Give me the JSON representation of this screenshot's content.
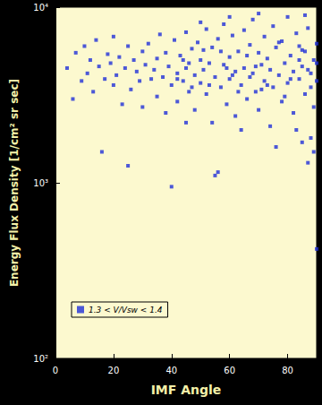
{
  "chart_data": {
    "type": "scatter",
    "x_label": "IMF Angle",
    "y_label": "Energy Flux Density [1/cm² sr sec]",
    "xlim": [
      0,
      90
    ],
    "xticks": [
      0,
      20,
      40,
      60,
      80
    ],
    "ylim": [
      100,
      10000
    ],
    "yticks": [
      {
        "value": 100,
        "label": "10²"
      },
      {
        "value": 1000,
        "label": "10³"
      },
      {
        "value": 10000,
        "label": "10⁴"
      }
    ],
    "log": "y",
    "grid": false,
    "legend": "lower left",
    "series": [
      {
        "name": "1.3 < V/Vsw < 1.4",
        "color": "#1f2fd8",
        "marker": "square",
        "x": [
          4,
          6,
          7,
          9,
          10,
          11,
          12,
          13,
          14,
          15,
          16,
          17,
          18,
          19,
          20,
          20,
          21,
          22,
          23,
          24,
          25,
          25,
          26,
          27,
          28,
          29,
          30,
          30,
          31,
          32,
          33,
          34,
          35,
          35,
          36,
          37,
          38,
          38,
          39,
          40,
          40,
          41,
          42,
          42,
          43,
          44,
          45,
          45,
          46,
          47,
          48,
          48,
          49,
          50,
          50,
          51,
          52,
          52,
          53,
          54,
          54,
          55,
          55,
          56,
          56,
          57,
          58,
          58,
          59,
          60,
          60,
          61,
          62,
          62,
          63,
          64,
          65,
          65,
          66,
          67,
          68,
          68,
          69,
          70,
          70,
          71,
          72,
          72,
          73,
          74,
          74,
          75,
          75,
          76,
          77,
          78,
          78,
          79,
          80,
          80,
          81,
          82,
          82,
          83,
          84,
          84,
          85,
          85,
          86,
          86,
          87,
          87,
          88,
          88,
          89,
          89,
          90,
          90,
          90,
          86,
          70,
          60,
          50,
          45,
          64,
          76,
          83,
          89,
          44,
          46,
          53,
          57,
          61,
          66,
          69,
          73,
          77,
          81,
          85,
          88,
          42,
          47,
          51,
          59,
          63,
          67,
          71,
          79,
          84,
          87,
          90
        ],
        "values": [
          4500,
          3000,
          5500,
          3800,
          6000,
          4200,
          5000,
          3300,
          6500,
          4600,
          1500,
          3900,
          5400,
          4800,
          3600,
          6800,
          4100,
          5200,
          2800,
          4500,
          1250,
          6000,
          3400,
          5000,
          4300,
          3800,
          5600,
          2700,
          4700,
          6200,
          3900,
          4400,
          5100,
          3100,
          7000,
          4000,
          2500,
          5500,
          4600,
          950,
          3600,
          6500,
          4200,
          2900,
          5300,
          3800,
          7200,
          4500,
          3300,
          5800,
          4100,
          2600,
          6300,
          3700,
          5000,
          4400,
          7500,
          3200,
          4800,
          2200,
          5900,
          1100,
          4000,
          1150,
          6600,
          3500,
          4700,
          8000,
          2800,
          5200,
          3900,
          6900,
          4300,
          2400,
          5600,
          3600,
          7400,
          4500,
          3000,
          6100,
          4200,
          8500,
          3300,
          5500,
          2600,
          4700,
          6800,
          3800,
          5100,
          2100,
          4400,
          7800,
          3500,
          5900,
          4100,
          2900,
          6400,
          4800,
          3700,
          8800,
          5300,
          2500,
          4300,
          7100,
          3900,
          6000,
          1700,
          4600,
          5600,
          3200,
          1300,
          7600,
          4200,
          1800,
          5000,
          2700,
          420,
          3800,
          6200,
          9000,
          9200,
          8800,
          8200,
          2200,
          2000,
          1600,
          2000,
          1500,
          5000,
          4800,
          3600,
          5600,
          4100,
          5300,
          4600,
          3600,
          6300,
          3900,
          5700,
          3500,
          3900,
          3500,
          5700,
          4500,
          3300,
          4000,
          3400,
          3100,
          5000,
          4400,
          4800
        ]
      }
    ]
  }
}
